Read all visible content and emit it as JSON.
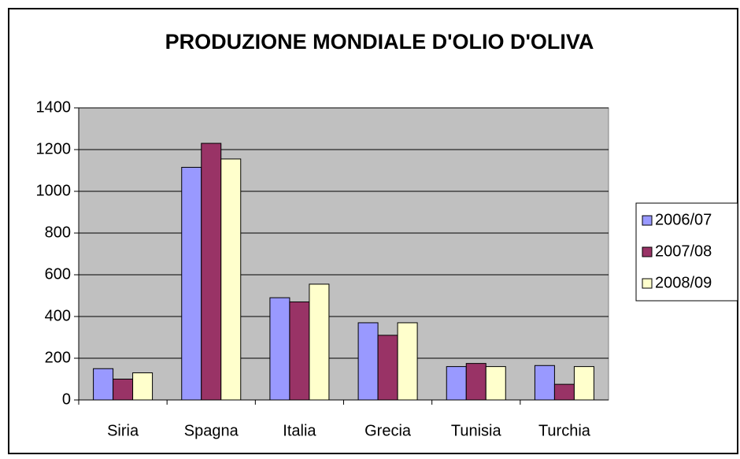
{
  "chart_data": {
    "type": "bar",
    "title": "PRODUZIONE MONDIALE D'OLIO D'OLIVA",
    "categories": [
      "Siria",
      "Spagna",
      "Italia",
      "Grecia",
      "Tunisia",
      "Turchia"
    ],
    "series": [
      {
        "name": "2006/07",
        "color": "#9999ff",
        "values": [
          150,
          1115,
          490,
          370,
          160,
          165
        ]
      },
      {
        "name": "2007/08",
        "color": "#993366",
        "values": [
          100,
          1230,
          470,
          310,
          175,
          75
        ]
      },
      {
        "name": "2008/09",
        "color": "#ffffcc",
        "values": [
          130,
          1155,
          555,
          370,
          160,
          160
        ]
      }
    ],
    "ylim": [
      0,
      1400
    ],
    "yticks": [
      0,
      200,
      400,
      600,
      800,
      1000,
      1200,
      1400
    ],
    "grid": true,
    "legend": "right"
  }
}
